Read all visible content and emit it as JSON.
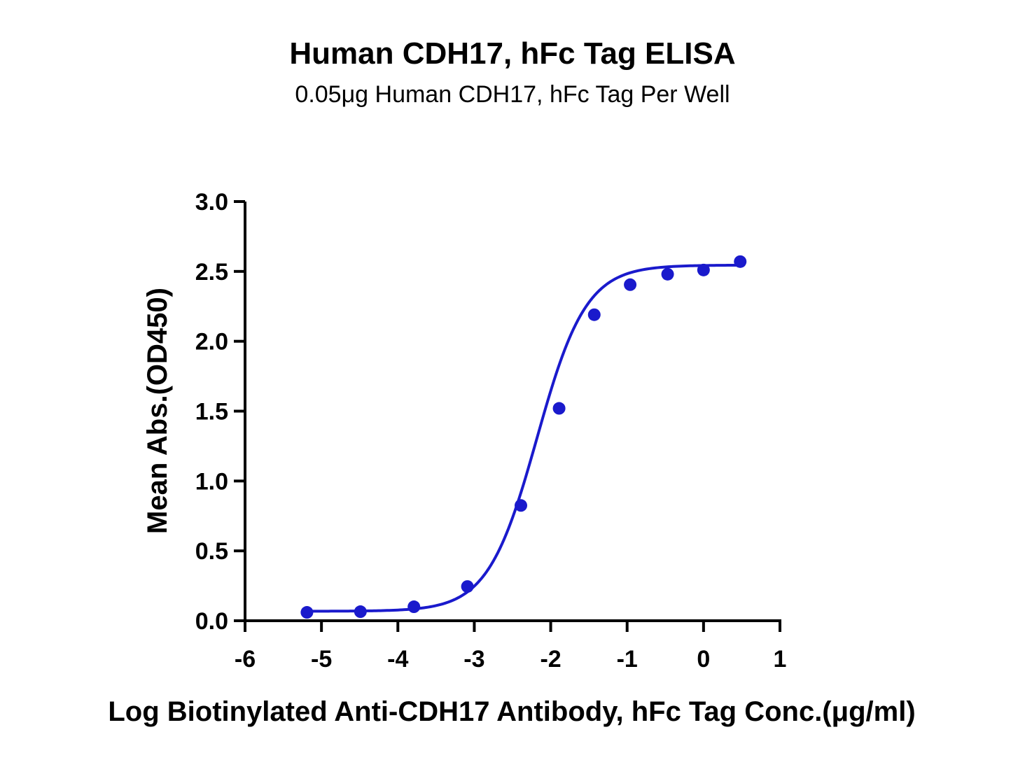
{
  "chart_data": {
    "type": "scatter",
    "title": "Human CDH17, hFc Tag ELISA",
    "subtitle": "0.05μg Human CDH17, hFc Tag Per Well",
    "xlabel": "Log Biotinylated Anti-CDH17 Antibody, hFc Tag Conc.(μg/ml)",
    "ylabel": "Mean Abs.(OD450)",
    "xlim": [
      -6,
      1
    ],
    "ylim": [
      0,
      3.0
    ],
    "x_ticks": [
      "-6",
      "-5",
      "-4",
      "-3",
      "-2",
      "-1",
      "0",
      "1"
    ],
    "y_ticks": [
      "0.0",
      "0.5",
      "1.0",
      "1.5",
      "2.0",
      "2.5",
      "3.0"
    ],
    "series": [
      {
        "color": "#1a1acc",
        "fit": "4PL",
        "points": [
          {
            "x": -5.19,
            "y": 0.06
          },
          {
            "x": -4.49,
            "y": 0.065
          },
          {
            "x": -3.79,
            "y": 0.1
          },
          {
            "x": -3.09,
            "y": 0.245
          },
          {
            "x": -2.39,
            "y": 0.825
          },
          {
            "x": -1.89,
            "y": 1.52
          },
          {
            "x": -1.43,
            "y": 2.19
          },
          {
            "x": -0.96,
            "y": 2.405
          },
          {
            "x": -0.47,
            "y": 2.48
          },
          {
            "x": 0.0,
            "y": 2.51
          },
          {
            "x": 0.48,
            "y": 2.57
          }
        ]
      }
    ],
    "grid": false
  }
}
